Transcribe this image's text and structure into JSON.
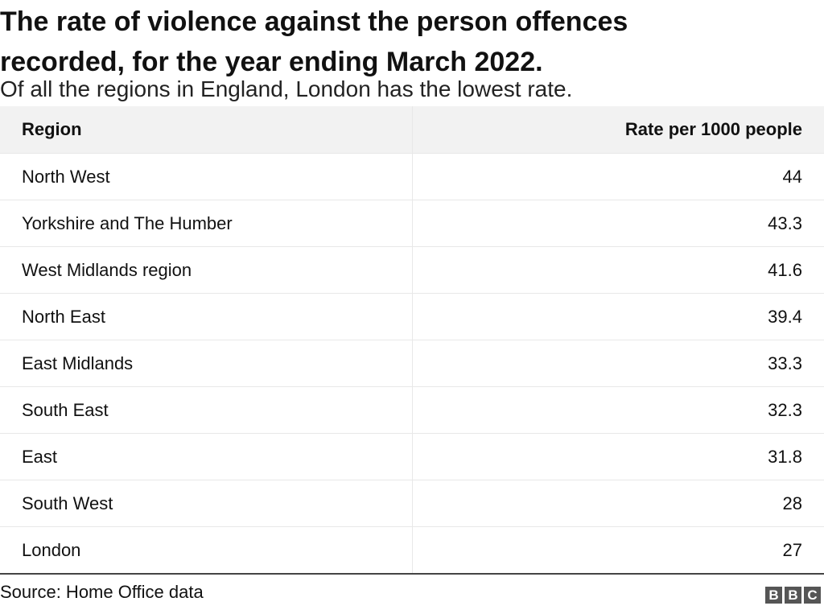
{
  "header": {
    "title": "The rate of violence against the person offences recorded, for the year ending March 2022.",
    "subtitle": "Of all the regions in England, London has the lowest rate."
  },
  "table": {
    "columns": [
      "Region",
      "Rate per 1000 people"
    ],
    "rows": [
      [
        "North West",
        44
      ],
      [
        "Yorkshire and The Humber",
        43.3
      ],
      [
        "West Midlands region",
        41.6
      ],
      [
        "North East",
        39.4
      ],
      [
        "East Midlands",
        33.3
      ],
      [
        "South East",
        32.3
      ],
      [
        "East",
        31.8
      ],
      [
        "South West",
        28
      ],
      [
        "London",
        27
      ]
    ]
  },
  "footer": {
    "source": "Source: Home Office data",
    "logo": [
      "B",
      "B",
      "C"
    ]
  }
}
